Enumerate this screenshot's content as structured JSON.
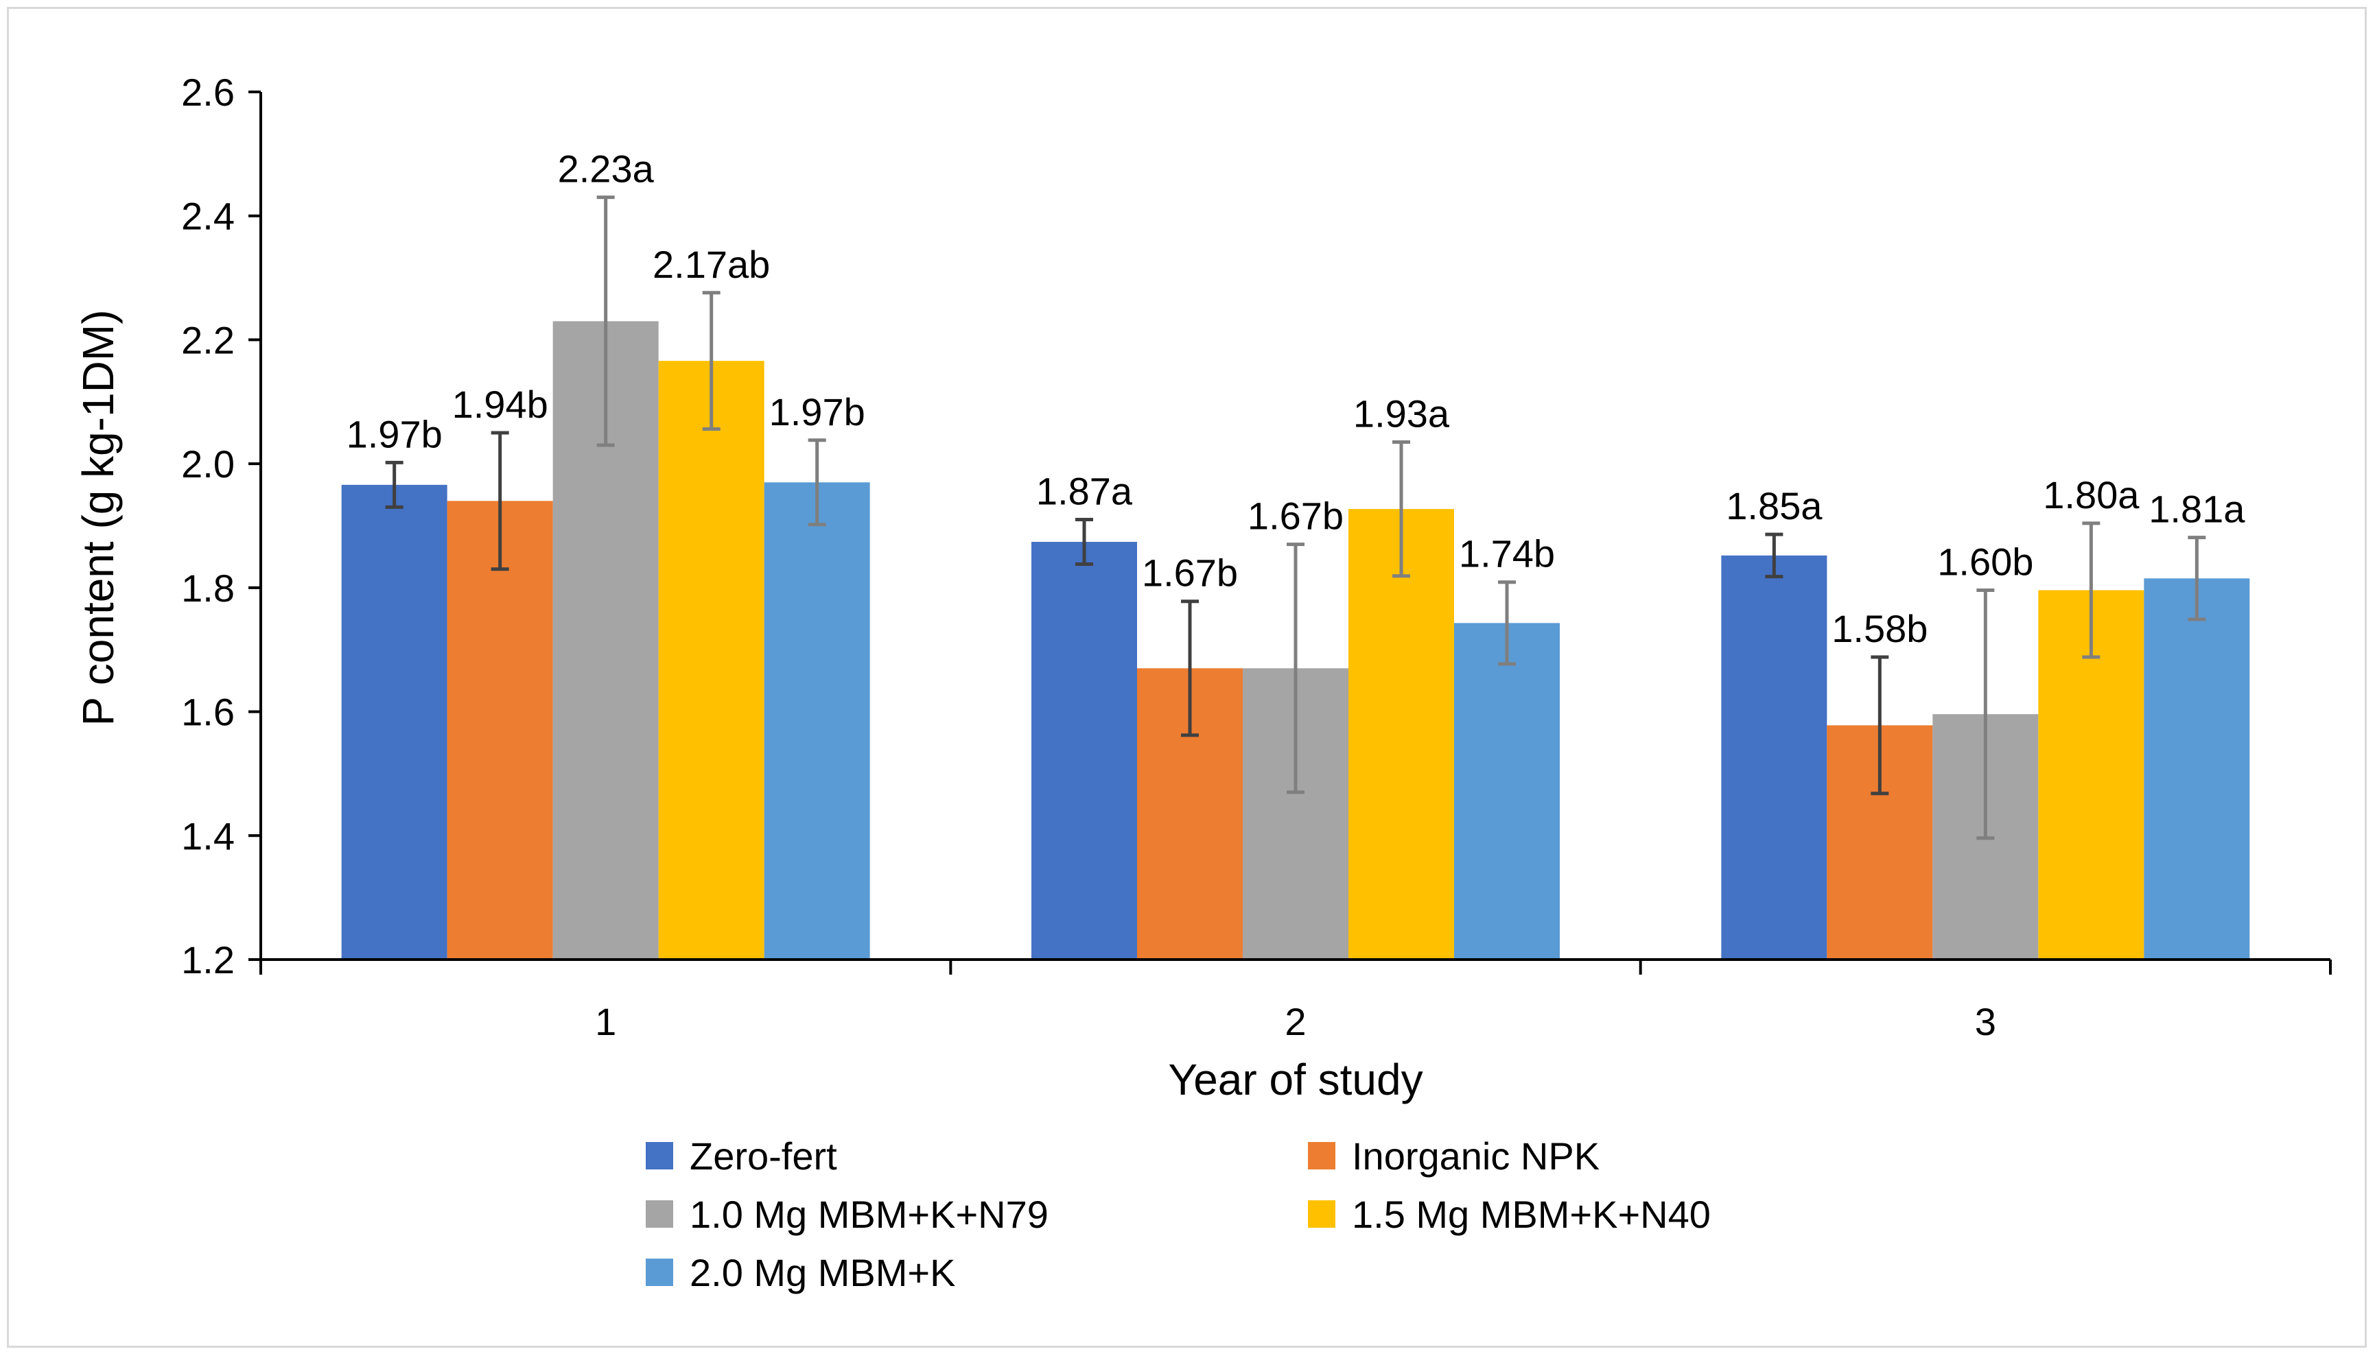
{
  "chart_data": {
    "type": "bar",
    "title": "",
    "xlabel": "Year of study",
    "ylabel": "P content (g kg-1DM)",
    "ylim": [
      1.2,
      2.6
    ],
    "ytick_step": 0.2,
    "ytick_labels": [
      "1.2",
      "1.4",
      "1.6",
      "1.8",
      "2.0",
      "2.2",
      "2.4",
      "2.6"
    ],
    "categories": [
      "1",
      "2",
      "3"
    ],
    "grid": false,
    "legend_position": "bottom",
    "series": [
      {
        "name": "Zero-fert",
        "color": "#4472C4",
        "values": [
          1.966,
          1.874,
          1.852
        ],
        "errors": [
          0.036,
          0.036,
          0.034
        ],
        "labels": [
          "1.97b",
          "1.87a",
          "1.85a"
        ]
      },
      {
        "name": "Inorganic NPK",
        "color": "#ED7D31",
        "values": [
          1.94,
          1.67,
          1.578
        ],
        "errors": [
          0.11,
          0.108,
          0.11
        ],
        "labels": [
          "1.94b",
          "1.67b",
          "1.58b"
        ]
      },
      {
        "name": "1.0 Mg MBM+K+N79",
        "color": "#A5A5A5",
        "values": [
          2.23,
          1.67,
          1.596
        ],
        "errors": [
          0.2,
          0.2,
          0.2
        ],
        "labels": [
          "2.23a",
          "1.67b",
          "1.60b"
        ]
      },
      {
        "name": "1.5 Mg MBM+K+N40",
        "color": "#FFC000",
        "values": [
          2.166,
          1.927,
          1.796
        ],
        "errors": [
          0.11,
          0.108,
          0.108
        ],
        "labels": [
          "2.17ab",
          "1.93a",
          "1.80a"
        ]
      },
      {
        "name": "2.0 Mg MBM+K",
        "color": "#5B9BD5",
        "values": [
          1.97,
          1.743,
          1.815
        ],
        "errors": [
          0.068,
          0.066,
          0.066
        ],
        "labels": [
          "1.97b",
          "1.74b",
          "1.81a"
        ]
      }
    ]
  }
}
